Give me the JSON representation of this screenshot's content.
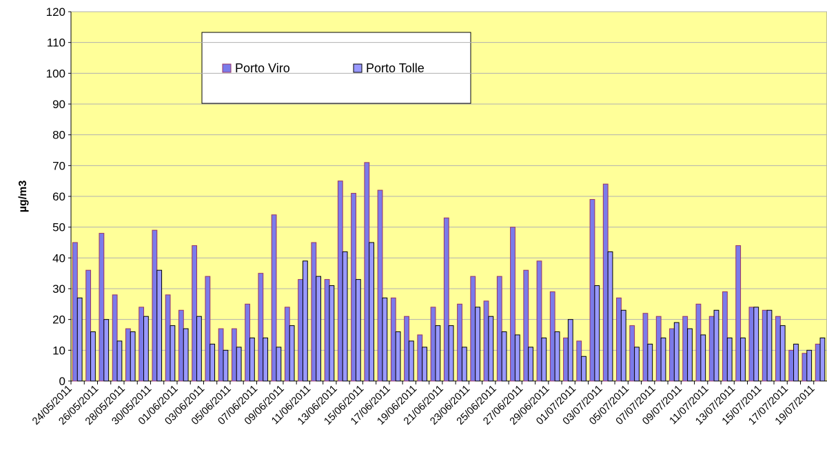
{
  "chart_data": {
    "type": "bar",
    "y_label": "µg/m3",
    "categories": [
      "24/05/2011",
      null,
      "26/05/2011",
      null,
      "28/05/2011",
      null,
      "30/05/2011",
      null,
      "01/06/2011",
      null,
      "03/06/2011",
      null,
      "05/06/2011",
      null,
      "07/06/2011",
      null,
      "09/06/2011",
      null,
      "11/06/2011",
      null,
      "13/06/2011",
      null,
      "15/06/2011",
      null,
      "17/06/2011",
      null,
      "19/06/2011",
      null,
      "21/06/2011",
      null,
      "23/06/2011",
      null,
      "25/06/2011",
      null,
      "27/06/2011",
      null,
      "29/06/2011",
      null,
      "01/07/2011",
      null,
      "03/07/2011",
      null,
      "05/07/2011",
      null,
      "07/07/2011",
      null,
      "09/07/2011",
      null,
      "11/07/2011",
      null,
      "13/07/2011",
      null,
      "15/07/2011",
      null,
      "17/07/2011",
      null,
      "19/07/2011"
    ],
    "series": [
      {
        "name": "Porto Viro",
        "color": "#7b7bea",
        "values": [
          45,
          36,
          48,
          28,
          17,
          24,
          49,
          28,
          23,
          44,
          34,
          17,
          17,
          25,
          35,
          54,
          24,
          33,
          45,
          33,
          65,
          61,
          71,
          62,
          27,
          21,
          15,
          24,
          53,
          25,
          34,
          26,
          34,
          50,
          36,
          39,
          29,
          14,
          13,
          59,
          64,
          27,
          18,
          22,
          21,
          17,
          21,
          25,
          21,
          29,
          44,
          24,
          23,
          21,
          10,
          9,
          12
        ]
      },
      {
        "name": "Porto Tolle",
        "color": "#9999ff",
        "values": [
          27,
          16,
          20,
          13,
          16,
          21,
          36,
          18,
          17,
          21,
          12,
          10,
          11,
          14,
          14,
          11,
          18,
          39,
          34,
          31,
          42,
          33,
          45,
          27,
          16,
          13,
          11,
          18,
          18,
          11,
          24,
          21,
          16,
          15,
          11,
          14,
          16,
          20,
          8,
          31,
          42,
          23,
          11,
          12,
          14,
          19,
          17,
          15,
          23,
          14,
          14,
          24,
          23,
          18,
          12,
          10,
          14
        ]
      }
    ],
    "ylim": [
      0,
      120
    ],
    "yticks": [
      0,
      10,
      20,
      30,
      40,
      50,
      60,
      70,
      80,
      90,
      100,
      110,
      120
    ],
    "grid": true,
    "background": "#ffff99",
    "legend": "top"
  }
}
